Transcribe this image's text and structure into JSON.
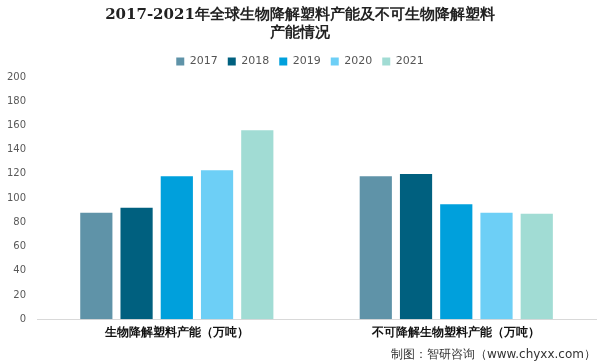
{
  "chart_data": {
    "type": "bar",
    "title": [
      "2017-2021年全球生物降解塑料产能及不可生物降解塑料",
      "产能情况"
    ],
    "source": "制图：智研咨询（www.chyxx.com）",
    "categories": [
      "生物降解塑料产能（万吨）",
      "不可降解生物塑料产能（万吨）"
    ],
    "series": [
      {
        "name": "2017",
        "color": "#5f93a8",
        "values": [
          88,
          118
        ]
      },
      {
        "name": "2018",
        "color": "#00607f",
        "values": [
          92,
          120
        ]
      },
      {
        "name": "2019",
        "color": "#00a0dc",
        "values": [
          118,
          95
        ]
      },
      {
        "name": "2020",
        "color": "#6dcff6",
        "values": [
          123,
          88
        ]
      },
      {
        "name": "2021",
        "color": "#a1dcd4",
        "values": [
          156,
          87
        ]
      }
    ],
    "ylim": [
      0,
      200
    ],
    "yticks": [
      0,
      20,
      40,
      60,
      80,
      100,
      120,
      140,
      160,
      180,
      200
    ],
    "grid": false,
    "legend": "top"
  }
}
